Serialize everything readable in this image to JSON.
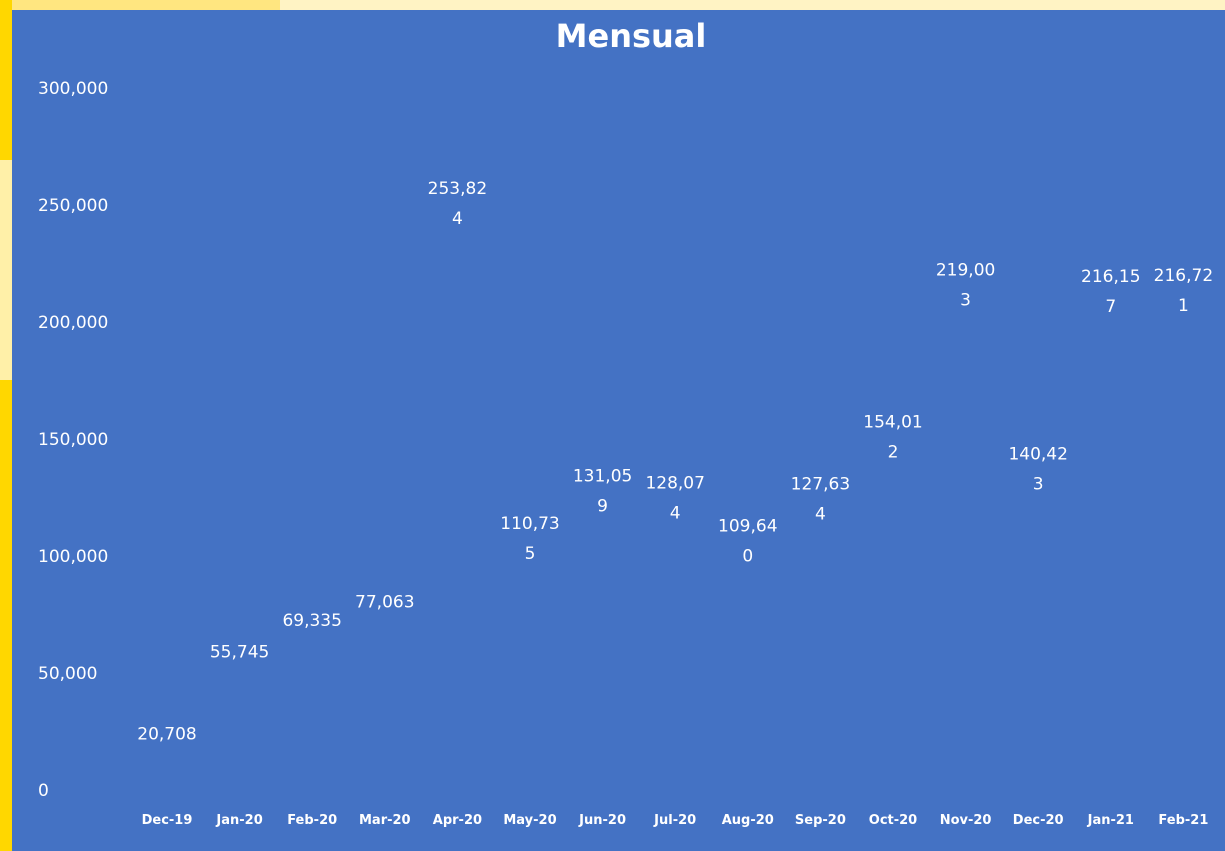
{
  "chart_data": {
    "type": "scatter",
    "title": "Mensual",
    "xlabel": "",
    "ylabel": "",
    "categories": [
      "Dec-19",
      "Jan-20",
      "Feb-20",
      "Mar-20",
      "Apr-20",
      "May-20",
      "Jun-20",
      "Jul-20",
      "Aug-20",
      "Sep-20",
      "Oct-20",
      "Nov-20",
      "Dec-20",
      "Jan-21",
      "Feb-21"
    ],
    "values": [
      20708,
      55745,
      69335,
      77063,
      253824,
      110735,
      131059,
      128074,
      109640,
      127634,
      154012,
      219003,
      140423,
      216157,
      216721
    ],
    "data_labels": [
      [
        "20,708"
      ],
      [
        "55,745"
      ],
      [
        "69,335"
      ],
      [
        "77,063"
      ],
      [
        "253,82",
        "4"
      ],
      [
        "110,73",
        "5"
      ],
      [
        "131,05",
        "9"
      ],
      [
        "128,07",
        "4"
      ],
      [
        "109,64",
        "0"
      ],
      [
        "127,63",
        "4"
      ],
      [
        "154,01",
        "2"
      ],
      [
        "219,00",
        "3"
      ],
      [
        "140,42",
        "3"
      ],
      [
        "216,15",
        "7"
      ],
      [
        "216,72",
        "1"
      ]
    ],
    "ylim": [
      0,
      300000
    ],
    "yticks": [
      0,
      50000,
      100000,
      150000,
      200000,
      250000,
      300000
    ],
    "ytick_labels": [
      "0",
      "50,000",
      "100,000",
      "150,000",
      "200,000",
      "250,000",
      "300,000"
    ],
    "grid": false,
    "markers_visible": false,
    "colors": {
      "background": "#4472c4",
      "text": "#ffffff",
      "accent": "#ffd700"
    }
  }
}
